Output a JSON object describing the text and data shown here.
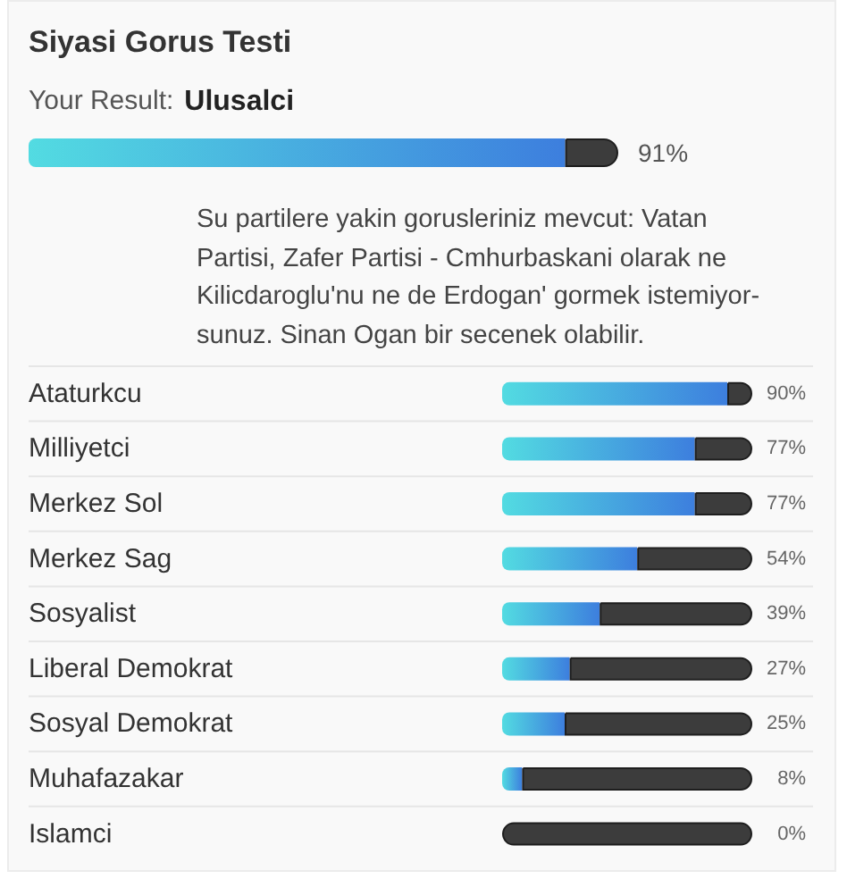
{
  "chart_data": [
    {
      "type": "bar",
      "orientation": "horizontal",
      "stacked": true,
      "title": "Siyasi Gorus Testi",
      "subtitle": "Your Result:",
      "categories": [
        "Ulusalci"
      ],
      "series": [
        {
          "color": "#4a9be0",
          "values": [
            91
          ],
          "value_labels": [
            "91%"
          ]
        },
        {
          "color": "#3c3c3c",
          "values": [
            9
          ]
        }
      ],
      "xlim": [
        0,
        100
      ],
      "tick_labels": "y",
      "annotations": [
        "Su partilere yakin gorusleriniz mevcut: Vatan Partisi, Zafer Partisi - Cmhurbaskani olarak ne Kilicdaroglu'nu ne de Erdogan' gormek istemiyor-sunuz. Sinan Ogan bir secenek olabilir."
      ]
    },
    {
      "type": "bar",
      "orientation": "horizontal",
      "stacked": true,
      "categories": [
        "Ataturkcu",
        "Milliyetci",
        "Merkez Sol",
        "Merkez Sag",
        "Sosyalist",
        "Liberal Demokrat",
        "Sosyal Demokrat",
        "Muhafazakar",
        "Islamci"
      ],
      "series": [
        {
          "color": "#4a9be0",
          "values": [
            90,
            77,
            77,
            54,
            39,
            27,
            25,
            8,
            0
          ],
          "value_labels": [
            "90%",
            "77%",
            "77%",
            "54%",
            "39%",
            "27%",
            "25%",
            "8%",
            "0%"
          ]
        },
        {
          "color": "#3c3c3c",
          "values": [
            10,
            23,
            23,
            46,
            61,
            73,
            75,
            92,
            100
          ]
        }
      ],
      "xlim": [
        0,
        100
      ],
      "tick_labels": "y",
      "grid": "y"
    }
  ]
}
